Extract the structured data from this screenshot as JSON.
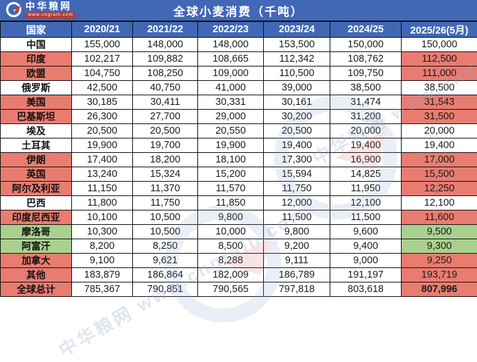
{
  "colors": {
    "blue": "#4268B5",
    "red": "#E97C70",
    "green": "#A9D08E"
  },
  "topbar": {
    "brand": "中华粮网",
    "brand_url": "www.cngrain.com",
    "title": "全球小麦消费（千吨）"
  },
  "chart_data": {
    "type": "table",
    "title": "全球小麦消费（千吨）",
    "unit": "千吨",
    "columns": [
      "国家",
      "2020/21",
      "2021/22",
      "2022/23",
      "2023/24",
      "2024/25",
      "2025/26(5月)"
    ],
    "rows": [
      {
        "country": "中国",
        "values": [
          155000,
          148000,
          148000,
          153500,
          150000,
          150000
        ],
        "name_bg": "w",
        "last_bg": "w"
      },
      {
        "country": "印度",
        "values": [
          102217,
          109882,
          108665,
          112342,
          108762,
          112500
        ],
        "name_bg": "r",
        "last_bg": "r"
      },
      {
        "country": "欧盟",
        "values": [
          104750,
          108250,
          109000,
          110500,
          109750,
          111000
        ],
        "name_bg": "r",
        "last_bg": "r"
      },
      {
        "country": "俄罗斯",
        "values": [
          42500,
          40750,
          41000,
          39000,
          38500,
          38500
        ],
        "name_bg": "w",
        "last_bg": "w"
      },
      {
        "country": "美国",
        "values": [
          30185,
          30411,
          30331,
          30161,
          31474,
          31543
        ],
        "name_bg": "r",
        "last_bg": "r"
      },
      {
        "country": "巴基斯坦",
        "values": [
          26300,
          27700,
          29000,
          30200,
          31200,
          31500
        ],
        "name_bg": "r",
        "last_bg": "r"
      },
      {
        "country": "埃及",
        "values": [
          20500,
          20500,
          20550,
          20500,
          20000,
          20000
        ],
        "name_bg": "w",
        "last_bg": "w"
      },
      {
        "country": "土耳其",
        "values": [
          19900,
          19700,
          19900,
          19400,
          19400,
          19400
        ],
        "name_bg": "w",
        "last_bg": "w"
      },
      {
        "country": "伊朗",
        "values": [
          17400,
          18200,
          18100,
          17300,
          16900,
          17000
        ],
        "name_bg": "r",
        "last_bg": "r"
      },
      {
        "country": "英国",
        "values": [
          13240,
          15324,
          15200,
          15594,
          14825,
          15500
        ],
        "name_bg": "r",
        "last_bg": "r"
      },
      {
        "country": "阿尔及利亚",
        "values": [
          11150,
          11370,
          11570,
          11750,
          11950,
          12250
        ],
        "name_bg": "r",
        "last_bg": "r"
      },
      {
        "country": "巴西",
        "values": [
          11800,
          11750,
          11850,
          12000,
          12100,
          12100
        ],
        "name_bg": "w",
        "last_bg": "w"
      },
      {
        "country": "印度尼西亚",
        "values": [
          10100,
          10500,
          9800,
          11500,
          11500,
          11600
        ],
        "name_bg": "r",
        "last_bg": "r"
      },
      {
        "country": "摩洛哥",
        "values": [
          10300,
          10500,
          10000,
          9800,
          9600,
          9500
        ],
        "name_bg": "g",
        "last_bg": "g"
      },
      {
        "country": "阿富汗",
        "values": [
          8200,
          8250,
          8500,
          9200,
          9400,
          9300
        ],
        "name_bg": "g",
        "last_bg": "g"
      },
      {
        "country": "加拿大",
        "values": [
          9100,
          9621,
          8288,
          9111,
          9000,
          9250
        ],
        "name_bg": "r",
        "last_bg": "r"
      },
      {
        "country": "其他",
        "values": [
          183879,
          186864,
          182009,
          186789,
          191197,
          193719
        ],
        "name_bg": "r",
        "last_bg": "r"
      },
      {
        "country": "全球总计",
        "values": [
          785367,
          790851,
          790565,
          797818,
          803618,
          807996
        ],
        "name_bg": "r",
        "last_bg": "r",
        "bold": true
      }
    ]
  },
  "watermark": {
    "text": "中华粮网 www.cngrain.com"
  }
}
